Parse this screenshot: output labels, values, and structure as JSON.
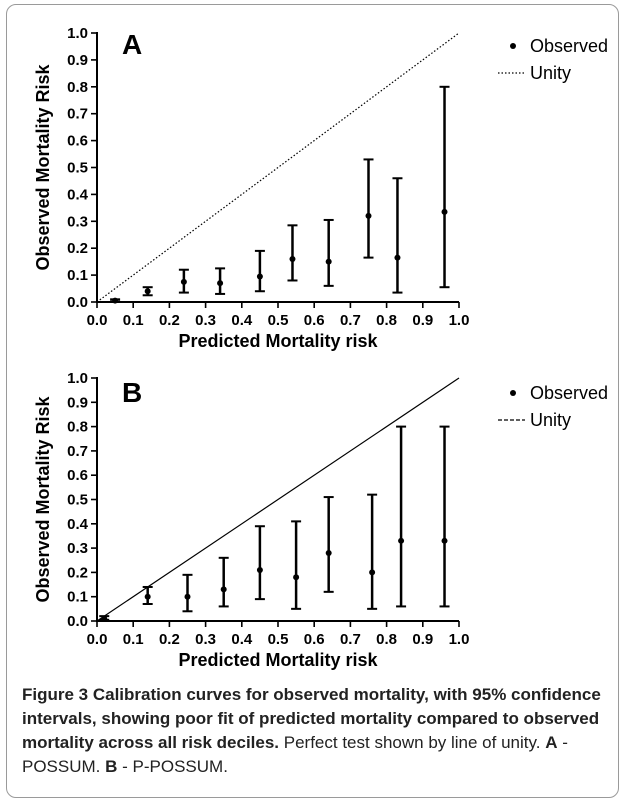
{
  "charts": [
    {
      "panel": "A",
      "chart_data": {
        "type": "scatter",
        "xlabel": "Predicted Mortality risk",
        "ylabel": "Observed Mortality Risk",
        "xlim": [
          0,
          1.0
        ],
        "ylim": [
          0,
          1.0
        ],
        "xticks": [
          "0.0",
          "0.1",
          "0.2",
          "0.3",
          "0.4",
          "0.5",
          "0.6",
          "0.7",
          "0.8",
          "0.9",
          "1.0"
        ],
        "yticks": [
          "0.0",
          "0.1",
          "0.2",
          "0.3",
          "0.4",
          "0.5",
          "0.6",
          "0.7",
          "0.8",
          "0.9",
          "1.0"
        ],
        "grid": false,
        "legend_position": "top-right",
        "series": [
          {
            "name": "Observed",
            "points": [
              {
                "x": 0.05,
                "y": 0.005,
                "low": 0.002,
                "high": 0.01
              },
              {
                "x": 0.14,
                "y": 0.04,
                "low": 0.025,
                "high": 0.055
              },
              {
                "x": 0.24,
                "y": 0.075,
                "low": 0.035,
                "high": 0.12
              },
              {
                "x": 0.34,
                "y": 0.07,
                "low": 0.03,
                "high": 0.125
              },
              {
                "x": 0.45,
                "y": 0.095,
                "low": 0.04,
                "high": 0.19
              },
              {
                "x": 0.54,
                "y": 0.16,
                "low": 0.08,
                "high": 0.285
              },
              {
                "x": 0.64,
                "y": 0.15,
                "low": 0.06,
                "high": 0.305
              },
              {
                "x": 0.75,
                "y": 0.32,
                "low": 0.165,
                "high": 0.53
              },
              {
                "x": 0.83,
                "y": 0.165,
                "low": 0.035,
                "high": 0.46
              },
              {
                "x": 0.96,
                "y": 0.335,
                "low": 0.055,
                "high": 0.8
              }
            ]
          },
          {
            "name": "Unity",
            "style": "dotted",
            "points": [
              {
                "x": 0.0,
                "y": 0.0
              },
              {
                "x": 1.0,
                "y": 1.0
              }
            ]
          }
        ]
      }
    },
    {
      "panel": "B",
      "chart_data": {
        "type": "scatter",
        "xlabel": "Predicted Mortality risk",
        "ylabel": "Observed Mortality Risk",
        "xlim": [
          0,
          1.0
        ],
        "ylim": [
          0,
          1.0
        ],
        "xticks": [
          "0.0",
          "0.1",
          "0.2",
          "0.3",
          "0.4",
          "0.5",
          "0.6",
          "0.7",
          "0.8",
          "0.9",
          "1.0"
        ],
        "yticks": [
          "0.0",
          "0.1",
          "0.2",
          "0.3",
          "0.4",
          "0.5",
          "0.6",
          "0.7",
          "0.8",
          "0.9",
          "1.0"
        ],
        "grid": false,
        "legend_position": "top-right",
        "series": [
          {
            "name": "Observed",
            "points": [
              {
                "x": 0.02,
                "y": 0.01,
                "low": 0.005,
                "high": 0.02
              },
              {
                "x": 0.14,
                "y": 0.1,
                "low": 0.07,
                "high": 0.14
              },
              {
                "x": 0.25,
                "y": 0.1,
                "low": 0.04,
                "high": 0.19
              },
              {
                "x": 0.35,
                "y": 0.13,
                "low": 0.06,
                "high": 0.26
              },
              {
                "x": 0.45,
                "y": 0.21,
                "low": 0.09,
                "high": 0.39
              },
              {
                "x": 0.55,
                "y": 0.18,
                "low": 0.05,
                "high": 0.41
              },
              {
                "x": 0.64,
                "y": 0.28,
                "low": 0.12,
                "high": 0.51
              },
              {
                "x": 0.76,
                "y": 0.2,
                "low": 0.05,
                "high": 0.52
              },
              {
                "x": 0.84,
                "y": 0.33,
                "low": 0.06,
                "high": 0.8
              },
              {
                "x": 0.96,
                "y": 0.33,
                "low": 0.06,
                "high": 0.8
              }
            ]
          },
          {
            "name": "Unity",
            "style": "dashed",
            "points": [
              {
                "x": 0.0,
                "y": 0.0
              },
              {
                "x": 1.0,
                "y": 1.0
              }
            ]
          }
        ]
      }
    }
  ],
  "caption": {
    "title": "Figure 3 Calibration curves for observed mortality, with 95% confidence intervals, showing poor fit of predicted mortality compared to observed mortality across all risk deciles.",
    "text1": " Perfect test shown by line of unity. ",
    "a_label": "A",
    "a_text": " - POSSUM. ",
    "b_label": "B",
    "b_text": " - P-POSSUM."
  }
}
